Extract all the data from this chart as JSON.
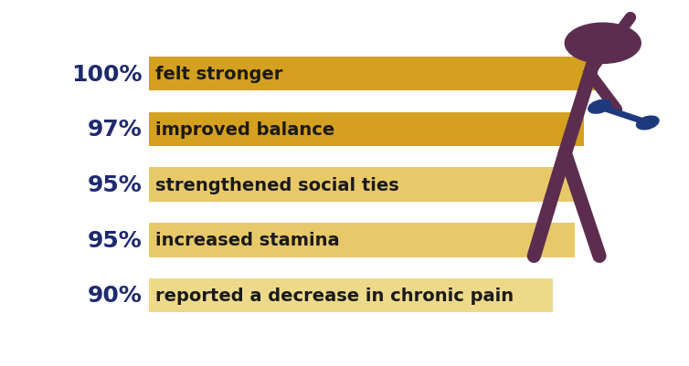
{
  "categories": [
    "felt stronger",
    "improved balance",
    "strengthened social ties",
    "increased stamina",
    "reported a decrease in chronic pain"
  ],
  "percentages": [
    "100%",
    "97%",
    "95%",
    "95%",
    "90%"
  ],
  "values": [
    100,
    97,
    95,
    95,
    90
  ],
  "bar_colors": [
    "#D4A020",
    "#D4A020",
    "#E8C96A",
    "#E8C96A",
    "#EDD98A"
  ],
  "text_color_pct": "#1E2A6E",
  "text_color_label": "#1a1a1a",
  "background_color": "#ffffff",
  "figure_color": "#5C2D4E",
  "dumbbell_color": "#1E3A7E",
  "bar_height": 0.62,
  "label_fontsize": 14,
  "pct_fontsize": 18
}
